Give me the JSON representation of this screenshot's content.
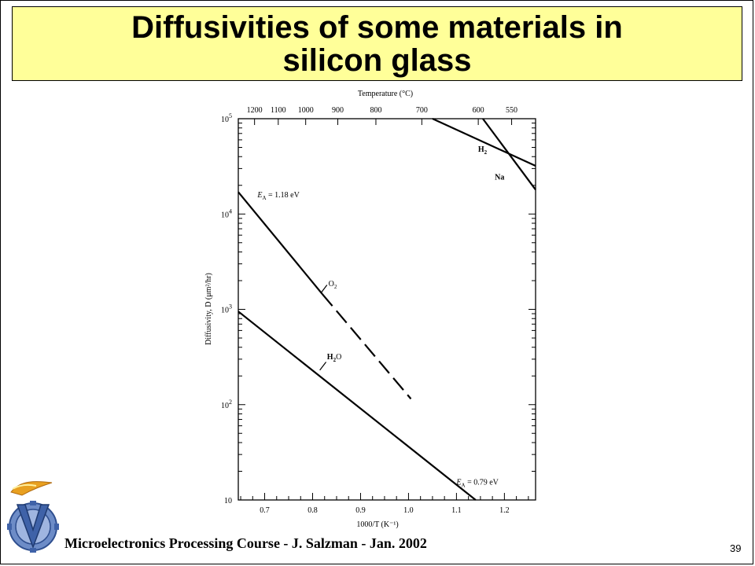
{
  "slide": {
    "title": "Diffusivities of some materials in silicon glass",
    "footer": "Microelectronics Processing Course - J. Salzman - Jan. 2002",
    "page_number": "39",
    "colors": {
      "title_background": "#ffff99",
      "logo_gold": "#e8a020",
      "logo_blue": "#4a6fb5"
    },
    "logo_icon": "technion-logo-icon"
  },
  "chart_data": {
    "type": "line",
    "xlabel": "1000/T  (K⁻¹)",
    "ylabel": "Diffusivity, D (μm²/hr)",
    "top_axis_label": "Temperature (°C)",
    "x_ticks": [
      "0.7",
      "0.8",
      "0.9",
      "1.0",
      "1.1",
      "1.2"
    ],
    "x_tick_values": [
      0.7,
      0.8,
      0.9,
      1.0,
      1.1,
      1.2
    ],
    "top_ticks": [
      "1200",
      "1100",
      "1000",
      "900",
      "800",
      "700",
      "600",
      "550"
    ],
    "top_tick_celsius": [
      1200,
      1100,
      1000,
      900,
      800,
      700,
      600,
      550
    ],
    "y_ticks": [
      {
        "base": "10",
        "exp": "5",
        "value": 100000
      },
      {
        "base": "10",
        "exp": "4",
        "value": 10000
      },
      {
        "base": "10",
        "exp": "3",
        "value": 1000
      },
      {
        "base": "10",
        "exp": "2",
        "value": 100
      },
      {
        "base": "10",
        "exp": "",
        "value": 10
      }
    ],
    "y_scale": "log",
    "xlim": [
      0.645,
      1.265
    ],
    "ylim": [
      10,
      100000
    ],
    "grid": false,
    "series": [
      {
        "name": "O₂",
        "style": "solid",
        "points": [
          [
            0.645,
            17000
          ],
          [
            0.82,
            1450
          ]
        ]
      },
      {
        "name": "O₂",
        "style": "dashed",
        "points": [
          [
            0.82,
            1450
          ],
          [
            1.005,
            115
          ]
        ]
      },
      {
        "name": "H₂O",
        "points": [
          [
            0.645,
            950
          ],
          [
            1.14,
            10
          ]
        ]
      },
      {
        "name": "H₂",
        "points": [
          [
            1.05,
            100000
          ],
          [
            1.265,
            32000
          ]
        ]
      },
      {
        "name": "Na",
        "points": [
          [
            1.155,
            100000
          ],
          [
            1.265,
            18000
          ]
        ]
      }
    ],
    "annotations": [
      {
        "text": "E",
        "sub": "A",
        "rest": " = 1.18 eV",
        "at": [
          0.685,
          15000
        ]
      },
      {
        "text": "E",
        "sub": "A",
        "rest": " = 0.79 eV",
        "at": [
          1.1,
          14.5
        ]
      },
      {
        "text": "O",
        "sub": "2",
        "rest": "",
        "at": [
          0.833,
          1750
        ]
      },
      {
        "text": "H",
        "sub": "2",
        "rest": "O",
        "at": [
          0.83,
          300
        ]
      },
      {
        "text": "H",
        "sub": "2",
        "rest": "",
        "at": [
          1.145,
          45000
        ]
      },
      {
        "text": "Na",
        "sub": "",
        "rest": "",
        "at": [
          1.18,
          23000
        ]
      }
    ]
  }
}
